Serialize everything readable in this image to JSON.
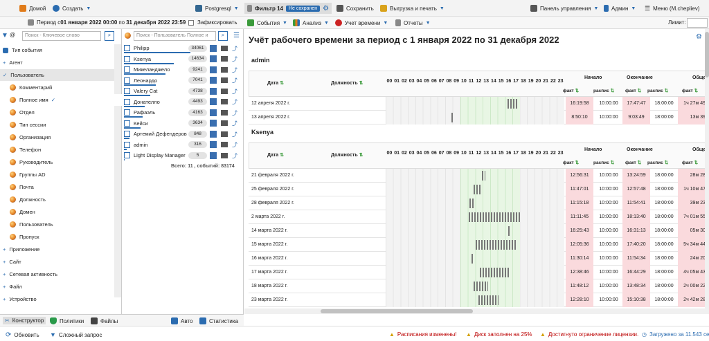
{
  "toolbar": {
    "home": "Домой",
    "create": "Создать",
    "db": "Postgresql",
    "filter": "Фильтр 14",
    "unsaved": "Не сохранен",
    "save": "Сохранить",
    "export": "Выгрузка и печать",
    "dashboard": "Панель управления",
    "admin": "Админ",
    "menu": "Меню (M.chepliev)"
  },
  "toolbar2": {
    "period_prefix": "Период с ",
    "period_from": "01 января 2022 00:00",
    "period_to_label": " по ",
    "period_to": "31 декабря 2022 23:59",
    "fixed": "Зафиксировать",
    "events": "События",
    "analysis": "Анализ",
    "worktime": "Учет времени",
    "reports": "Отчеты",
    "limit": "Лимит:"
  },
  "left": {
    "search_placeholder": "Поиск - Ключевое слово",
    "items": [
      "Тип события",
      "Агент",
      "Пользователь",
      "Комментарий",
      "Полное имя",
      "Отдел",
      "Тип сессии",
      "Организация",
      "Телефон",
      "Руководитель",
      "Группы AD",
      "Почта",
      "Должность",
      "Домен",
      "Пользователь",
      "Пропуск",
      "Приложение",
      "Сайт",
      "Сетевая активность",
      "Файл",
      "Устройство"
    ]
  },
  "mid": {
    "search_placeholder": "Поиск - Пользователь  Полное и",
    "users": [
      {
        "name": "Philipp",
        "count": "34061"
      },
      {
        "name": "Ksenya",
        "count": "14634"
      },
      {
        "name": "Микеланджело",
        "count": "9241"
      },
      {
        "name": "Леонардо",
        "count": "7041"
      },
      {
        "name": "Valery Cat",
        "count": "4738"
      },
      {
        "name": "Донателло",
        "count": "4493"
      },
      {
        "name": "Рафаэль",
        "count": "4163"
      },
      {
        "name": "Кейси",
        "count": "3634"
      },
      {
        "name": "Артемий Дефендеров",
        "count": "848"
      },
      {
        "name": "admin",
        "count": "316"
      },
      {
        "name": "Light Display Manager",
        "count": "5"
      }
    ],
    "total": "Всего: 11 , событий: 83174"
  },
  "footer": {
    "constructor": "Конструктор",
    "policies": "Политики",
    "files": "Файлы",
    "auto": "Авто",
    "stats": "Статистика",
    "refresh": "Обновить",
    "complex": "Сложный запрос",
    "warn1": "Расписания изменены!",
    "warn2": "Диск заполнен на 25%",
    "warn3": "Достигнуто ограничение лицензии.",
    "loaded": "Загружено за 11.543 сек"
  },
  "report": {
    "title": "Учёт рабочего времени за период с 1 января 2022 по 31 декабря 2022",
    "hdr": {
      "date": "Дата",
      "position": "Должность",
      "start": "Начало",
      "end": "Окончание",
      "total": "Обще",
      "fact": "факт",
      "sched": "распис"
    },
    "hours": [
      "00",
      "01",
      "02",
      "03",
      "04",
      "05",
      "06",
      "07",
      "08",
      "09",
      "10",
      "11",
      "12",
      "13",
      "14",
      "15",
      "16",
      "17",
      "18",
      "19",
      "20",
      "21",
      "22",
      "23"
    ],
    "sections": [
      {
        "user": "admin",
        "rows": [
          {
            "date": "12 апреля 2022 г.",
            "fs": "16:19:58",
            "ss": "10:00:00",
            "fe": "17:47:47",
            "se": "18:00:00",
            "tot": "1ч 27м 49"
          },
          {
            "date": "13 апреля 2022 г.",
            "fs": "8:50:10",
            "ss": "10:00:00",
            "fe": "9:03:49",
            "se": "18:00:00",
            "tot": "13м 39"
          }
        ]
      },
      {
        "user": "Ksenya",
        "rows": [
          {
            "date": "21 февраля 2022 г.",
            "fs": "12:56:31",
            "ss": "10:00:00",
            "fe": "13:24:59",
            "se": "18:00:00",
            "tot": "28м 28"
          },
          {
            "date": "25 февраля 2022 г.",
            "fs": "11:47:01",
            "ss": "10:00:00",
            "fe": "12:57:48",
            "se": "18:00:00",
            "tot": "1ч 10м 47"
          },
          {
            "date": "28 февраля 2022 г.",
            "fs": "11:15:18",
            "ss": "10:00:00",
            "fe": "11:54:41",
            "se": "18:00:00",
            "tot": "39м 23"
          },
          {
            "date": "2 марта 2022 г.",
            "fs": "11:11:45",
            "ss": "10:00:00",
            "fe": "18:13:40",
            "se": "18:00:00",
            "tot": "7ч 01м 55"
          },
          {
            "date": "14 марта 2022 г.",
            "fs": "16:25:43",
            "ss": "10:00:00",
            "fe": "16:31:13",
            "se": "18:00:00",
            "tot": "05м 30"
          },
          {
            "date": "15 марта 2022 г.",
            "fs": "12:05:36",
            "ss": "10:00:00",
            "fe": "17:40:20",
            "se": "18:00:00",
            "tot": "5ч 34м 44"
          },
          {
            "date": "16 марта 2022 г.",
            "fs": "11:30:14",
            "ss": "10:00:00",
            "fe": "11:54:34",
            "se": "18:00:00",
            "tot": "24м 20"
          },
          {
            "date": "17 марта 2022 г.",
            "fs": "12:38:46",
            "ss": "10:00:00",
            "fe": "16:44:29",
            "se": "18:00:00",
            "tot": "4ч 05м 43"
          },
          {
            "date": "18 марта 2022 г.",
            "fs": "11:48:12",
            "ss": "10:00:00",
            "fe": "13:48:34",
            "se": "18:00:00",
            "tot": "2ч 00м 22"
          },
          {
            "date": "23 марта 2022 г.",
            "fs": "12:28:10",
            "ss": "10:00:00",
            "fe": "15:10:38",
            "se": "18:00:00",
            "tot": "2ч 42м 28"
          }
        ]
      }
    ]
  }
}
